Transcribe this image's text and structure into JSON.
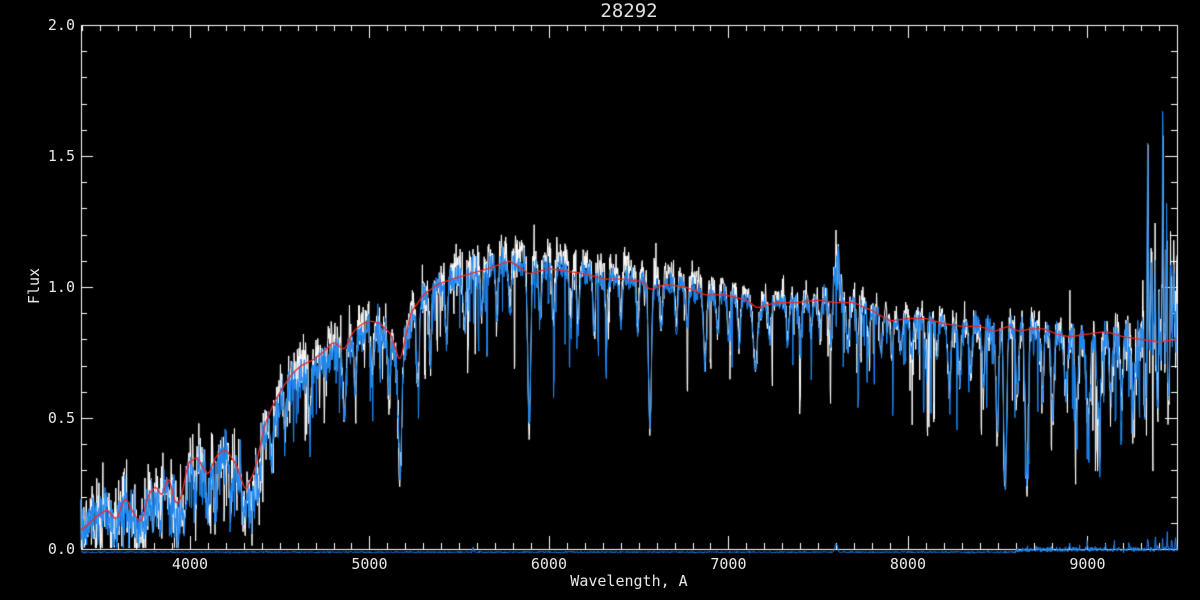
{
  "colors": {
    "background": "#000000",
    "axis": "#ffffff",
    "text": "#e8e8e8",
    "raw_spectrum": "#ffffff",
    "main_spectrum": "#1e87f0",
    "model_fit": "#ef2929"
  },
  "chart_data": {
    "type": "line",
    "title": "28292",
    "xlabel": "Wavelength, A",
    "ylabel": "Flux",
    "xlim": [
      3393,
      9499
    ],
    "ylim": [
      0.0,
      2.0
    ],
    "grid": false,
    "legend": "none",
    "x_ticks": {
      "values": [
        4000,
        5000,
        6000,
        7000,
        8000,
        9000
      ],
      "labels": [
        "4000",
        "5000",
        "6000",
        "7000",
        "8000",
        "9000"
      ],
      "minor_step": 100
    },
    "y_ticks": {
      "values": [
        0.0,
        0.5,
        1.0,
        1.5,
        2.0
      ],
      "labels": [
        "0.0",
        "0.5",
        "1.0",
        "1.5",
        "2.0"
      ],
      "minor_step": 0.1
    },
    "series": [
      {
        "name": "observed-spectrum-raw",
        "color": "#ffffff",
        "style": "noisy-line"
      },
      {
        "name": "observed-spectrum-main",
        "color": "#1e87f0",
        "style": "noisy-line"
      },
      {
        "name": "model-fit",
        "color": "#ef2929",
        "style": "smooth-line"
      },
      {
        "name": "error-sky-spectrum",
        "color": "#1e87f0",
        "style": "near-zero-line",
        "level": -0.012
      }
    ],
    "model_anchors": [
      [
        3393,
        0.07
      ],
      [
        3440,
        0.1
      ],
      [
        3490,
        0.13
      ],
      [
        3540,
        0.15
      ],
      [
        3590,
        0.11
      ],
      [
        3640,
        0.2
      ],
      [
        3690,
        0.13
      ],
      [
        3730,
        0.1
      ],
      [
        3770,
        0.21
      ],
      [
        3810,
        0.24
      ],
      [
        3845,
        0.2
      ],
      [
        3880,
        0.28
      ],
      [
        3920,
        0.17
      ],
      [
        3950,
        0.19
      ],
      [
        3990,
        0.33
      ],
      [
        4040,
        0.35
      ],
      [
        4100,
        0.28
      ],
      [
        4150,
        0.36
      ],
      [
        4200,
        0.38
      ],
      [
        4260,
        0.32
      ],
      [
        4310,
        0.22
      ],
      [
        4360,
        0.3
      ],
      [
        4420,
        0.48
      ],
      [
        4470,
        0.56
      ],
      [
        4520,
        0.62
      ],
      [
        4570,
        0.67
      ],
      [
        4620,
        0.7
      ],
      [
        4680,
        0.72
      ],
      [
        4740,
        0.75
      ],
      [
        4800,
        0.79
      ],
      [
        4861,
        0.76
      ],
      [
        4910,
        0.83
      ],
      [
        4960,
        0.86
      ],
      [
        5010,
        0.87
      ],
      [
        5060,
        0.86
      ],
      [
        5120,
        0.82
      ],
      [
        5170,
        0.71
      ],
      [
        5230,
        0.9
      ],
      [
        5300,
        0.97
      ],
      [
        5380,
        1.01
      ],
      [
        5460,
        1.03
      ],
      [
        5560,
        1.05
      ],
      [
        5660,
        1.07
      ],
      [
        5780,
        1.1
      ],
      [
        5890,
        1.05
      ],
      [
        6000,
        1.07
      ],
      [
        6100,
        1.06
      ],
      [
        6200,
        1.05
      ],
      [
        6310,
        1.03
      ],
      [
        6420,
        1.03
      ],
      [
        6520,
        1.02
      ],
      [
        6563,
        0.99
      ],
      [
        6650,
        1.01
      ],
      [
        6760,
        1.0
      ],
      [
        6870,
        0.97
      ],
      [
        6980,
        0.97
      ],
      [
        7100,
        0.95
      ],
      [
        7160,
        0.92
      ],
      [
        7260,
        0.94
      ],
      [
        7380,
        0.94
      ],
      [
        7500,
        0.95
      ],
      [
        7600,
        0.94
      ],
      [
        7700,
        0.94
      ],
      [
        7800,
        0.91
      ],
      [
        7900,
        0.87
      ],
      [
        8000,
        0.88
      ],
      [
        8100,
        0.88
      ],
      [
        8200,
        0.86
      ],
      [
        8300,
        0.85
      ],
      [
        8400,
        0.85
      ],
      [
        8480,
        0.83
      ],
      [
        8560,
        0.85
      ],
      [
        8620,
        0.83
      ],
      [
        8680,
        0.84
      ],
      [
        8760,
        0.84
      ],
      [
        8830,
        0.82
      ],
      [
        8900,
        0.81
      ],
      [
        9000,
        0.82
      ],
      [
        9100,
        0.83
      ],
      [
        9200,
        0.81
      ],
      [
        9300,
        0.8
      ],
      [
        9400,
        0.79
      ],
      [
        9499,
        0.8
      ]
    ],
    "absorption_lines": [
      [
        3580,
        0.5,
        10
      ],
      [
        3660,
        0.45,
        8
      ],
      [
        3710,
        0.5,
        8
      ],
      [
        3745,
        0.5,
        8
      ],
      [
        3798,
        0.5,
        7
      ],
      [
        3835,
        0.55,
        7
      ],
      [
        3889,
        0.5,
        7
      ],
      [
        3933,
        0.62,
        8
      ],
      [
        3968,
        0.55,
        8
      ],
      [
        4030,
        0.4,
        7
      ],
      [
        4101,
        0.45,
        8
      ],
      [
        4144,
        0.35,
        7
      ],
      [
        4226,
        0.45,
        7
      ],
      [
        4300,
        0.4,
        9
      ],
      [
        4340,
        0.4,
        8
      ],
      [
        4383,
        0.4,
        7
      ],
      [
        4455,
        0.3,
        7
      ],
      [
        4530,
        0.28,
        7
      ],
      [
        4668,
        0.28,
        7
      ],
      [
        4861,
        0.33,
        8
      ],
      [
        4920,
        0.25,
        7
      ],
      [
        5015,
        0.22,
        7
      ],
      [
        5110,
        0.25,
        7
      ],
      [
        5170,
        0.55,
        9
      ],
      [
        5270,
        0.3,
        7
      ],
      [
        5340,
        0.25,
        7
      ],
      [
        5430,
        0.2,
        7
      ],
      [
        5530,
        0.2,
        7
      ],
      [
        5625,
        0.18,
        7
      ],
      [
        5711,
        0.18,
        7
      ],
      [
        5782,
        0.18,
        7
      ],
      [
        5890,
        0.56,
        8
      ],
      [
        5950,
        0.18,
        7
      ],
      [
        6025,
        0.18,
        7
      ],
      [
        6122,
        0.22,
        7
      ],
      [
        6162,
        0.22,
        7
      ],
      [
        6250,
        0.2,
        7
      ],
      [
        6320,
        0.18,
        7
      ],
      [
        6400,
        0.18,
        7
      ],
      [
        6495,
        0.2,
        7
      ],
      [
        6563,
        0.53,
        8
      ],
      [
        6625,
        0.18,
        7
      ],
      [
        6710,
        0.16,
        7
      ],
      [
        6770,
        0.16,
        7
      ],
      [
        6870,
        0.28,
        9
      ],
      [
        6940,
        0.16,
        7
      ],
      [
        7000,
        0.16,
        7
      ],
      [
        7060,
        0.2,
        7
      ],
      [
        7150,
        0.25,
        12
      ],
      [
        7230,
        0.16,
        7
      ],
      [
        7330,
        0.16,
        7
      ],
      [
        7400,
        0.16,
        7
      ],
      [
        7460,
        0.14,
        7
      ],
      [
        7510,
        0.14,
        7
      ],
      [
        7570,
        0.16,
        7
      ],
      [
        7665,
        0.2,
        8
      ],
      [
        7720,
        0.14,
        7
      ],
      [
        7780,
        0.14,
        7
      ],
      [
        7850,
        0.16,
        7
      ],
      [
        7910,
        0.14,
        7
      ],
      [
        7960,
        0.14,
        7
      ],
      [
        8020,
        0.16,
        7
      ],
      [
        8100,
        0.16,
        7
      ],
      [
        8160,
        0.16,
        7
      ],
      [
        8230,
        0.3,
        8
      ],
      [
        8290,
        0.25,
        7
      ],
      [
        8350,
        0.22,
        7
      ],
      [
        8420,
        0.28,
        7
      ],
      [
        8498,
        0.45,
        7
      ],
      [
        8542,
        0.72,
        8
      ],
      [
        8610,
        0.28,
        7
      ],
      [
        8662,
        0.72,
        8
      ],
      [
        8750,
        0.28,
        7
      ],
      [
        8806,
        0.38,
        8
      ],
      [
        8880,
        0.28,
        8
      ],
      [
        8940,
        0.32,
        9
      ],
      [
        9005,
        0.38,
        12
      ],
      [
        9065,
        0.38,
        12
      ],
      [
        9130,
        0.28,
        9
      ],
      [
        9190,
        0.28,
        9
      ],
      [
        9255,
        0.28,
        9
      ],
      [
        9320,
        0.28,
        9
      ],
      [
        9390,
        0.28,
        9
      ],
      [
        9450,
        0.28,
        9
      ]
    ],
    "emission_spikes": [
      [
        5577,
        0.05,
        3
      ],
      [
        7590,
        0.12,
        4
      ],
      [
        7601,
        0.2,
        3
      ],
      [
        7613,
        0.15,
        3
      ],
      [
        7626,
        0.09,
        3
      ],
      [
        9310,
        0.25,
        3
      ],
      [
        9336,
        0.85,
        3
      ],
      [
        9357,
        0.3,
        3
      ],
      [
        9378,
        0.4,
        3
      ],
      [
        9399,
        0.28,
        3
      ],
      [
        9420,
        0.84,
        3
      ],
      [
        9442,
        0.6,
        3
      ],
      [
        9463,
        0.4,
        3
      ],
      [
        9481,
        0.3,
        3
      ],
      [
        9495,
        0.25,
        3
      ]
    ],
    "noise_sigma_anchors": [
      [
        3393,
        0.05
      ],
      [
        3700,
        0.055
      ],
      [
        4000,
        0.055
      ],
      [
        4400,
        0.05
      ],
      [
        4800,
        0.045
      ],
      [
        5200,
        0.04
      ],
      [
        5600,
        0.032
      ],
      [
        6000,
        0.028
      ],
      [
        6400,
        0.025
      ],
      [
        6800,
        0.022
      ],
      [
        7200,
        0.02
      ],
      [
        7600,
        0.025
      ],
      [
        8000,
        0.022
      ],
      [
        8400,
        0.028
      ],
      [
        8800,
        0.032
      ],
      [
        9100,
        0.04
      ],
      [
        9300,
        0.05
      ],
      [
        9499,
        0.06
      ]
    ],
    "forest": [
      [
        3393,
        0.1,
        0.8
      ],
      [
        4400,
        0.06,
        0.45
      ],
      [
        5300,
        0.035,
        0.35
      ],
      [
        6300,
        0.03,
        0.3
      ],
      [
        7300,
        0.03,
        0.3
      ],
      [
        8100,
        0.05,
        0.45
      ],
      [
        9499,
        0.06,
        0.5
      ]
    ],
    "white_uplift": [
      [
        3393,
        0
      ],
      [
        5300,
        0
      ],
      [
        5600,
        0.03
      ],
      [
        5900,
        0.045
      ],
      [
        6400,
        0.045
      ],
      [
        6900,
        0.04
      ],
      [
        7200,
        0.02
      ],
      [
        7600,
        0.015
      ],
      [
        8200,
        0.01
      ],
      [
        9499,
        0.01
      ]
    ],
    "blue_offset": [
      [
        3393,
        0
      ],
      [
        4400,
        -0.03
      ],
      [
        4800,
        -0.04
      ],
      [
        5200,
        -0.03
      ],
      [
        5500,
        0
      ],
      [
        9499,
        0
      ]
    ],
    "sky": {
      "level": -0.012,
      "bumps": [
        [
          5577,
          0.02,
          3
        ],
        [
          7600,
          0.032,
          7
        ]
      ],
      "noisy_from": 8600,
      "spikes": [
        [
          8900,
          0.018,
          2.5
        ],
        [
          9000,
          0.022,
          2.5
        ],
        [
          9100,
          0.02,
          2.5
        ],
        [
          9150,
          0.028,
          2.5
        ],
        [
          9230,
          0.02,
          2.5
        ],
        [
          9336,
          0.05,
          2.5
        ],
        [
          9380,
          0.035,
          2.5
        ],
        [
          9420,
          0.04,
          2.5
        ],
        [
          9445,
          0.05,
          2.5
        ],
        [
          9470,
          0.045,
          2.5
        ],
        [
          9490,
          0.04,
          2.5
        ]
      ]
    }
  }
}
